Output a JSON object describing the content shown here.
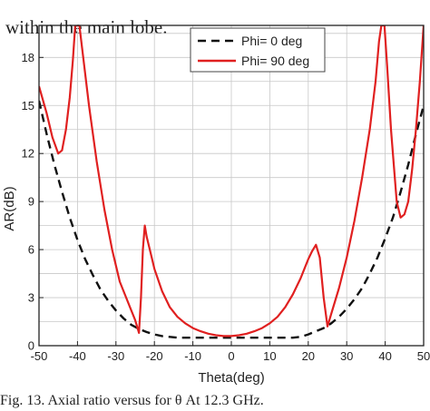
{
  "header": {
    "partial_text": "within the main lobe."
  },
  "figure": {
    "caption": "Fig. 13. Axial ratio versus for θ At 12.3 GHz."
  },
  "chart_data": {
    "type": "line",
    "title": "",
    "xlabel": "Theta(deg)",
    "ylabel": "AR(dB)",
    "xlim": [
      -50,
      50
    ],
    "ylim": [
      0,
      20
    ],
    "xticks": [
      -50,
      -40,
      -30,
      -20,
      -10,
      0,
      10,
      20,
      30,
      40,
      50
    ],
    "yticks": [
      0,
      3,
      6,
      9,
      12,
      15,
      18
    ],
    "grid": true,
    "legend_position": "top-right",
    "series": [
      {
        "name": "Phi= 0 deg",
        "color": "#111111",
        "dash": "dashed",
        "x": [
          -50,
          -48,
          -46,
          -44,
          -42,
          -40,
          -38,
          -36,
          -34,
          -32,
          -30,
          -28,
          -26,
          -24,
          -22,
          -20,
          -18,
          -16,
          -14,
          -12,
          -10,
          -8,
          -6,
          -4,
          -2,
          0,
          2,
          4,
          6,
          8,
          10,
          12,
          14,
          16,
          18,
          20,
          22,
          24,
          26,
          28,
          30,
          32,
          34,
          36,
          38,
          40,
          42,
          44,
          46,
          48,
          50
        ],
        "y": [
          15.3,
          13.2,
          11.3,
          9.6,
          8.0,
          6.6,
          5.4,
          4.4,
          3.5,
          2.8,
          2.2,
          1.7,
          1.3,
          1.05,
          0.85,
          0.7,
          0.6,
          0.55,
          0.5,
          0.5,
          0.5,
          0.5,
          0.5,
          0.5,
          0.5,
          0.5,
          0.5,
          0.5,
          0.5,
          0.5,
          0.5,
          0.5,
          0.5,
          0.5,
          0.55,
          0.7,
          0.9,
          1.1,
          1.4,
          1.8,
          2.3,
          2.9,
          3.6,
          4.5,
          5.5,
          6.7,
          8.0,
          9.6,
          11.3,
          13.2,
          15.0
        ]
      },
      {
        "name": "Phi= 90 deg",
        "color": "#e02020",
        "dash": "solid",
        "x": [
          -50,
          -48,
          -46.5,
          -45,
          -44,
          -43,
          -42,
          -41.2,
          -40.6,
          -39.5,
          -37,
          -35,
          -33,
          -31,
          -29,
          -27,
          -25,
          -24,
          -23.5,
          -23,
          -22.5,
          -22,
          -21,
          -20,
          -18,
          -16,
          -14,
          -12,
          -10,
          -8,
          -6,
          -4,
          -2,
          0,
          2,
          4,
          6,
          8,
          10,
          12,
          14,
          16,
          18,
          20,
          21,
          22,
          23,
          24,
          25,
          26,
          28,
          30,
          32,
          34,
          36,
          37.5,
          38.4,
          39,
          39.8,
          40.5,
          41.5,
          43,
          44,
          45,
          46,
          47,
          48,
          49,
          50
        ],
        "y": [
          16.2,
          14.5,
          13.0,
          12.0,
          12.2,
          13.5,
          15.5,
          17.8,
          20.0,
          20.0,
          15.0,
          11.5,
          8.5,
          6.0,
          4.0,
          2.8,
          1.6,
          0.8,
          3.0,
          6.0,
          7.5,
          6.8,
          5.8,
          4.8,
          3.4,
          2.4,
          1.8,
          1.4,
          1.1,
          0.9,
          0.75,
          0.65,
          0.6,
          0.6,
          0.65,
          0.75,
          0.9,
          1.1,
          1.4,
          1.8,
          2.4,
          3.2,
          4.2,
          5.4,
          5.9,
          6.3,
          5.5,
          3.0,
          1.2,
          2.0,
          3.6,
          5.5,
          7.8,
          10.5,
          13.5,
          16.5,
          19.0,
          20.0,
          20.0,
          17.5,
          13.5,
          9.0,
          8.0,
          8.2,
          9.0,
          11.0,
          13.5,
          16.5,
          20.0
        ]
      }
    ]
  }
}
